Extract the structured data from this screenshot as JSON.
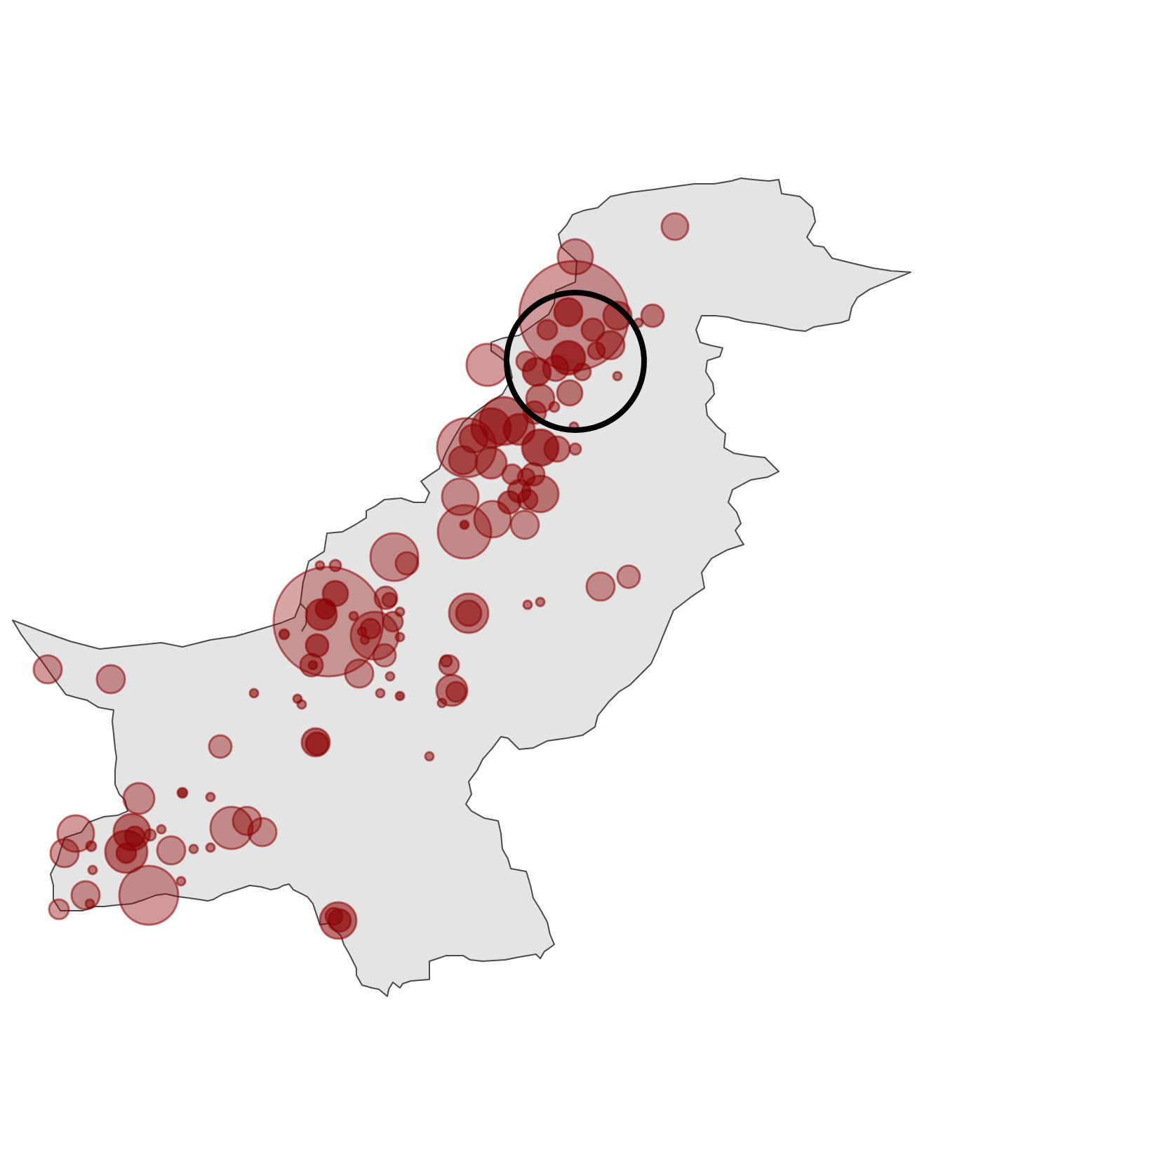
{
  "colors": {
    "background": "#ffffff",
    "land_fill": "#e4e4e4",
    "border": "#4a4a4a",
    "bubble_fill": "#8b0000",
    "highlight": "#000000"
  },
  "legend": null
}
